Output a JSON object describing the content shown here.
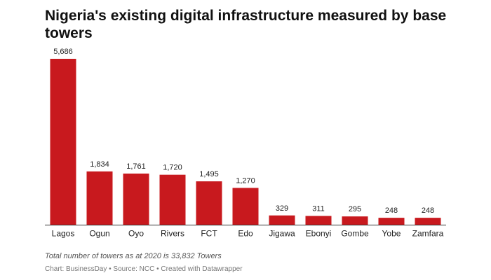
{
  "chart_data": {
    "type": "bar",
    "title": "Nigeria's existing digital infrastructure measured by base towers",
    "categories": [
      "Lagos",
      "Ogun",
      "Oyo",
      "Rivers",
      "FCT",
      "Edo",
      "Jigawa",
      "Ebonyi",
      "Gombe",
      "Yobe",
      "Zamfara"
    ],
    "values": [
      5686,
      1834,
      1761,
      1720,
      1495,
      1270,
      329,
      311,
      295,
      248,
      248
    ],
    "value_labels": [
      "5,686",
      "1,834",
      "1,761",
      "1,720",
      "1,495",
      "1,270",
      "329",
      "311",
      "295",
      "248",
      "248"
    ],
    "ylim": [
      0,
      5686
    ],
    "xlabel": "",
    "ylabel": "",
    "grid": false,
    "bar_color": "#c8191e"
  },
  "footer": {
    "note": "Total number of towers as at 2020 is 33,832 Towers",
    "credits": "Chart: BusinessDay • Source: NCC • Created with Datawrapper"
  }
}
